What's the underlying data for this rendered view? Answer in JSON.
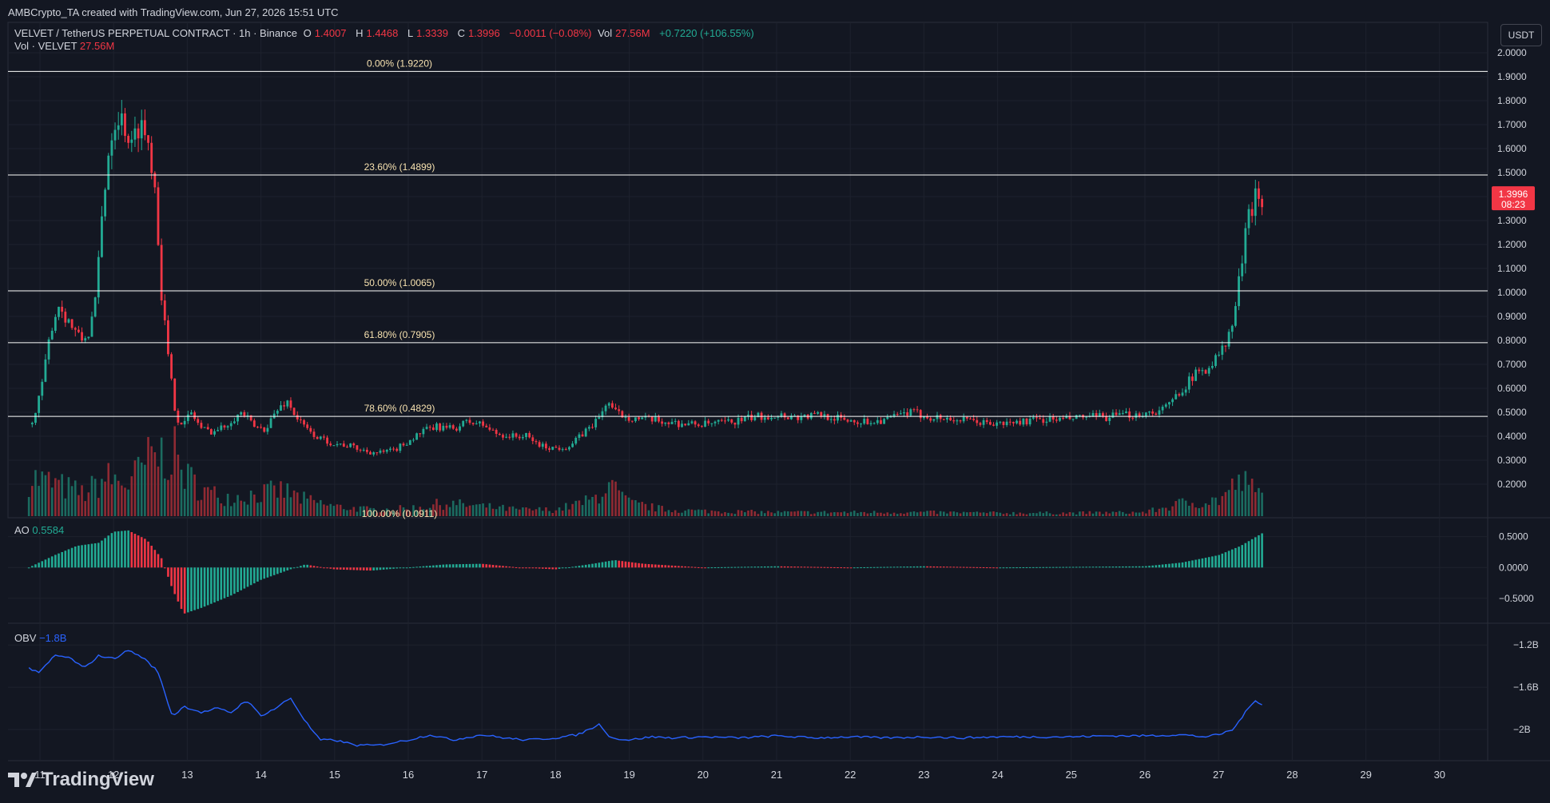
{
  "header": {
    "created_by": "AMBCrypto_TA created with TradingView.com, Jun 27, 2026 15:51 UTC",
    "symbol": "VELVET / TetherUS PERPETUAL CONTRACT · 1h · Binance",
    "o_label": "O",
    "o_value": "1.4007",
    "h_label": "H",
    "h_value": "1.4468",
    "l_label": "L",
    "l_value": "1.3339",
    "c_label": "C",
    "c_value": "1.3996",
    "change": "−0.0011 (−0.08%)",
    "vol_label": "Vol",
    "vol_value": "27.56M",
    "vol_change": "+0.7220 (+106.55%)",
    "vol_series_label": "Vol · VELVET",
    "vol_series_value": "27.56M",
    "currency_button": "USDT"
  },
  "ao": {
    "label": "AO",
    "value": "0.5584"
  },
  "obv": {
    "label": "OBV",
    "value": "−1.8B"
  },
  "brand": {
    "name": "TradingView"
  },
  "colors": {
    "bg": "#131722",
    "up": "#22ab94",
    "down": "#f23645",
    "fib": "#ffffff",
    "obv": "#2962ff",
    "text": "#d1d4dc",
    "grid": "#1e222d"
  },
  "chart_data": {
    "type": "candlestick",
    "x_axis": {
      "type": "date",
      "tick_labels": [
        "11",
        "12",
        "13",
        "14",
        "15",
        "16",
        "17",
        "18",
        "19",
        "20",
        "21",
        "22",
        "23",
        "24",
        "25",
        "26",
        "27",
        "28",
        "29",
        "30"
      ]
    },
    "price_axis": {
      "range": [
        0.15,
        2.05
      ],
      "tick_labels": [
        "2.0000",
        "1.9000",
        "1.8000",
        "1.7000",
        "1.6000",
        "1.5000",
        "1.4000",
        "1.3000",
        "1.2000",
        "1.1000",
        "1.0000",
        "0.9000",
        "0.8000",
        "0.7000",
        "0.6000",
        "0.5000",
        "0.4000",
        "0.3000",
        "0.2000"
      ]
    },
    "last_price": {
      "value": "1.3996",
      "countdown": "08:23"
    },
    "fibonacci": [
      {
        "label": "0.00% (1.9220)",
        "value": 1.922
      },
      {
        "label": "23.60% (1.4899)",
        "value": 1.4899
      },
      {
        "label": "50.00% (1.0065)",
        "value": 1.0065
      },
      {
        "label": "61.80% (0.7905)",
        "value": 0.7905
      },
      {
        "label": "78.60% (0.4829)",
        "value": 0.4829
      },
      {
        "label": "100.00% (0.0911)",
        "value": 0.0911
      }
    ],
    "price_path": [
      [
        10.85,
        0.45
      ],
      [
        10.95,
        0.5
      ],
      [
        11.05,
        0.65
      ],
      [
        11.15,
        0.85
      ],
      [
        11.25,
        0.95
      ],
      [
        11.35,
        0.9
      ],
      [
        11.45,
        0.85
      ],
      [
        11.55,
        0.8
      ],
      [
        11.65,
        0.82
      ],
      [
        11.75,
        0.95
      ],
      [
        11.85,
        1.35
      ],
      [
        11.95,
        1.65
      ],
      [
        12.05,
        1.75
      ],
      [
        12.15,
        1.7
      ],
      [
        12.25,
        1.6
      ],
      [
        12.35,
        1.72
      ],
      [
        12.45,
        1.65
      ],
      [
        12.55,
        1.5
      ],
      [
        12.65,
        1.0
      ],
      [
        12.75,
        0.7
      ],
      [
        12.85,
        0.48
      ],
      [
        12.95,
        0.45
      ],
      [
        13.05,
        0.5
      ],
      [
        13.2,
        0.43
      ],
      [
        13.35,
        0.42
      ],
      [
        13.5,
        0.44
      ],
      [
        13.6,
        0.47
      ],
      [
        13.75,
        0.5
      ],
      [
        13.9,
        0.44
      ],
      [
        14.05,
        0.43
      ],
      [
        14.2,
        0.5
      ],
      [
        14.35,
        0.55
      ],
      [
        14.5,
        0.47
      ],
      [
        14.65,
        0.42
      ],
      [
        14.8,
        0.39
      ],
      [
        15.0,
        0.37
      ],
      [
        15.2,
        0.36
      ],
      [
        15.4,
        0.34
      ],
      [
        15.6,
        0.33
      ],
      [
        15.8,
        0.34
      ],
      [
        16.0,
        0.38
      ],
      [
        16.2,
        0.42
      ],
      [
        16.4,
        0.44
      ],
      [
        16.6,
        0.43
      ],
      [
        16.8,
        0.46
      ],
      [
        17.0,
        0.45
      ],
      [
        17.2,
        0.41
      ],
      [
        17.4,
        0.4
      ],
      [
        17.6,
        0.4
      ],
      [
        17.8,
        0.36
      ],
      [
        18.0,
        0.35
      ],
      [
        18.2,
        0.36
      ],
      [
        18.4,
        0.42
      ],
      [
        18.6,
        0.48
      ],
      [
        18.7,
        0.55
      ],
      [
        18.8,
        0.5
      ],
      [
        19.0,
        0.48
      ],
      [
        19.2,
        0.47
      ],
      [
        19.5,
        0.46
      ],
      [
        19.8,
        0.45
      ],
      [
        20.1,
        0.45
      ],
      [
        20.4,
        0.46
      ],
      [
        20.7,
        0.48
      ],
      [
        21.0,
        0.49
      ],
      [
        21.3,
        0.48
      ],
      [
        21.6,
        0.49
      ],
      [
        21.9,
        0.47
      ],
      [
        22.2,
        0.46
      ],
      [
        22.5,
        0.47
      ],
      [
        22.8,
        0.5
      ],
      [
        23.1,
        0.48
      ],
      [
        23.4,
        0.47
      ],
      [
        23.7,
        0.46
      ],
      [
        24.0,
        0.45
      ],
      [
        24.3,
        0.46
      ],
      [
        24.6,
        0.47
      ],
      [
        24.9,
        0.47
      ],
      [
        25.2,
        0.48
      ],
      [
        25.5,
        0.48
      ],
      [
        25.8,
        0.49
      ],
      [
        26.1,
        0.5
      ],
      [
        26.3,
        0.52
      ],
      [
        26.5,
        0.6
      ],
      [
        26.7,
        0.66
      ],
      [
        26.9,
        0.7
      ],
      [
        27.1,
        0.78
      ],
      [
        27.2,
        0.88
      ],
      [
        27.3,
        1.1
      ],
      [
        27.4,
        1.3
      ],
      [
        27.5,
        1.42
      ],
      [
        27.6,
        1.4
      ]
    ],
    "volume_path": [
      [
        10.9,
        0.6
      ],
      [
        11.2,
        0.5
      ],
      [
        11.6,
        0.35
      ],
      [
        11.9,
        0.6
      ],
      [
        12.2,
        0.5
      ],
      [
        12.5,
        0.9
      ],
      [
        12.8,
        1.0
      ],
      [
        13.0,
        0.6
      ],
      [
        13.3,
        0.35
      ],
      [
        13.6,
        0.3
      ],
      [
        14.0,
        0.35
      ],
      [
        14.3,
        0.4
      ],
      [
        14.6,
        0.25
      ],
      [
        15.0,
        0.15
      ],
      [
        15.5,
        0.1
      ],
      [
        16.0,
        0.12
      ],
      [
        16.5,
        0.2
      ],
      [
        17.0,
        0.15
      ],
      [
        17.5,
        0.1
      ],
      [
        18.0,
        0.1
      ],
      [
        18.5,
        0.25
      ],
      [
        18.7,
        0.5
      ],
      [
        19.0,
        0.2
      ],
      [
        19.5,
        0.1
      ],
      [
        20.0,
        0.08
      ],
      [
        21.0,
        0.06
      ],
      [
        22.0,
        0.06
      ],
      [
        23.0,
        0.06
      ],
      [
        24.0,
        0.05
      ],
      [
        25.0,
        0.05
      ],
      [
        26.0,
        0.06
      ],
      [
        26.5,
        0.2
      ],
      [
        27.0,
        0.25
      ],
      [
        27.3,
        0.55
      ],
      [
        27.6,
        0.3
      ]
    ],
    "ao": {
      "range": [
        -0.85,
        0.65
      ],
      "tick_labels": [
        "0.5000",
        "0.0000",
        "−0.5000"
      ],
      "path": [
        [
          10.85,
          0.0
        ],
        [
          11.2,
          0.2
        ],
        [
          11.5,
          0.35
        ],
        [
          11.8,
          0.4
        ],
        [
          12.0,
          0.58
        ],
        [
          12.2,
          0.6
        ],
        [
          12.45,
          0.45
        ],
        [
          12.65,
          0.15
        ],
        [
          12.8,
          -0.35
        ],
        [
          12.95,
          -0.75
        ],
        [
          13.2,
          -0.65
        ],
        [
          13.6,
          -0.45
        ],
        [
          14.0,
          -0.2
        ],
        [
          14.4,
          -0.03
        ],
        [
          14.6,
          0.05
        ],
        [
          15.0,
          -0.03
        ],
        [
          15.5,
          -0.05
        ],
        [
          16.0,
          0.0
        ],
        [
          16.5,
          0.05
        ],
        [
          17.0,
          0.06
        ],
        [
          17.5,
          0.0
        ],
        [
          18.0,
          -0.03
        ],
        [
          18.5,
          0.06
        ],
        [
          18.8,
          0.12
        ],
        [
          19.2,
          0.06
        ],
        [
          20.0,
          0.0
        ],
        [
          21.0,
          0.02
        ],
        [
          22.0,
          0.0
        ],
        [
          23.0,
          0.02
        ],
        [
          24.0,
          0.0
        ],
        [
          25.0,
          0.01
        ],
        [
          26.0,
          0.02
        ],
        [
          26.5,
          0.08
        ],
        [
          27.0,
          0.2
        ],
        [
          27.3,
          0.35
        ],
        [
          27.6,
          0.56
        ]
      ]
    },
    "obv": {
      "range": [
        -2.25,
        -1.1
      ],
      "tick_labels": [
        "−1.2B",
        "−1.6B",
        "−2B"
      ],
      "path": [
        [
          10.85,
          -1.42
        ],
        [
          11.0,
          -1.46
        ],
        [
          11.2,
          -1.3
        ],
        [
          11.4,
          -1.32
        ],
        [
          11.6,
          -1.42
        ],
        [
          11.8,
          -1.3
        ],
        [
          12.0,
          -1.33
        ],
        [
          12.2,
          -1.25
        ],
        [
          12.4,
          -1.32
        ],
        [
          12.6,
          -1.45
        ],
        [
          12.8,
          -1.88
        ],
        [
          12.95,
          -1.78
        ],
        [
          13.2,
          -1.84
        ],
        [
          13.4,
          -1.8
        ],
        [
          13.6,
          -1.84
        ],
        [
          13.8,
          -1.72
        ],
        [
          14.0,
          -1.87
        ],
        [
          14.2,
          -1.8
        ],
        [
          14.4,
          -1.7
        ],
        [
          14.6,
          -1.92
        ],
        [
          14.8,
          -2.1
        ],
        [
          15.0,
          -2.1
        ],
        [
          15.3,
          -2.15
        ],
        [
          15.6,
          -2.15
        ],
        [
          16.0,
          -2.1
        ],
        [
          16.3,
          -2.05
        ],
        [
          16.6,
          -2.1
        ],
        [
          17.0,
          -2.05
        ],
        [
          17.3,
          -2.08
        ],
        [
          17.6,
          -2.1
        ],
        [
          18.0,
          -2.08
        ],
        [
          18.3,
          -2.05
        ],
        [
          18.6,
          -1.95
        ],
        [
          18.75,
          -2.08
        ],
        [
          19.0,
          -2.1
        ],
        [
          19.3,
          -2.07
        ],
        [
          19.6,
          -2.08
        ],
        [
          20.0,
          -2.07
        ],
        [
          20.5,
          -2.08
        ],
        [
          21.0,
          -2.06
        ],
        [
          21.5,
          -2.08
        ],
        [
          22.0,
          -2.07
        ],
        [
          22.5,
          -2.08
        ],
        [
          23.0,
          -2.07
        ],
        [
          23.5,
          -2.08
        ],
        [
          24.0,
          -2.07
        ],
        [
          24.5,
          -2.07
        ],
        [
          25.0,
          -2.07
        ],
        [
          25.5,
          -2.06
        ],
        [
          26.0,
          -2.06
        ],
        [
          26.5,
          -2.05
        ],
        [
          26.8,
          -2.07
        ],
        [
          27.0,
          -2.05
        ],
        [
          27.2,
          -2.0
        ],
        [
          27.35,
          -1.85
        ],
        [
          27.5,
          -1.72
        ],
        [
          27.62,
          -1.78
        ]
      ]
    }
  }
}
